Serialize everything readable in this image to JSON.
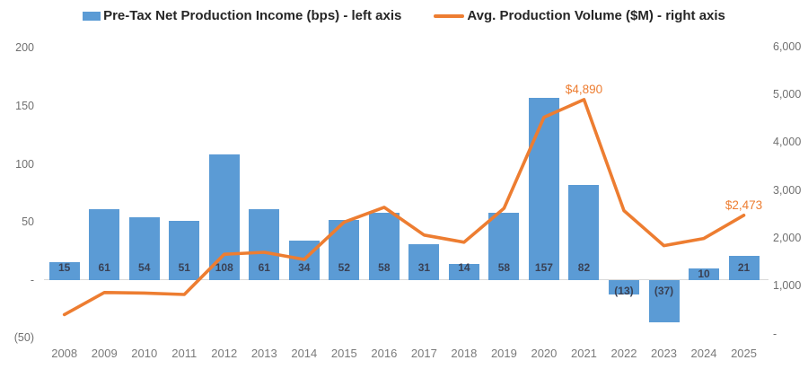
{
  "chart_data": {
    "type": "combo",
    "title": "",
    "grid": false,
    "legend_position": "top",
    "categories": [
      "2008",
      "2009",
      "2010",
      "2011",
      "2012",
      "2013",
      "2014",
      "2015",
      "2016",
      "2017",
      "2018",
      "2019",
      "2020",
      "2021",
      "2022",
      "2023",
      "2024",
      "2025"
    ],
    "series": [
      {
        "name": "Pre-Tax Net Production Income (bps)",
        "legend_label": "Pre-Tax Net Production Income (bps) - left axis",
        "type": "bar",
        "axis": "left",
        "color": "#5B9BD5",
        "values": [
          15,
          61,
          54,
          51,
          108,
          61,
          34,
          52,
          58,
          31,
          14,
          58,
          157,
          82,
          -13,
          -37,
          10,
          21
        ],
        "labels": [
          "15",
          "61",
          "54",
          "51",
          "108",
          "61",
          "34",
          "52",
          "58",
          "31",
          "14",
          "58",
          "157",
          "82",
          "(13)",
          "(37)",
          "10",
          "21"
        ]
      },
      {
        "name": "Avg. Production Volume ($M)",
        "legend_label": "Avg. Production Volume ($M) - right axis",
        "type": "line",
        "axis": "right",
        "color": "#ED7D31",
        "values": [
          400,
          860,
          850,
          820,
          1660,
          1700,
          1550,
          2330,
          2640,
          2060,
          1910,
          2620,
          4520,
          4890,
          2570,
          1840,
          1990,
          2473
        ],
        "annotations": [
          {
            "index": 13,
            "text": "$4,890"
          },
          {
            "index": 17,
            "text": "$2,473"
          }
        ]
      }
    ],
    "left_axis": {
      "min": -50,
      "max": 200,
      "ticks": [
        {
          "value": 200,
          "label": "200"
        },
        {
          "value": 150,
          "label": "150"
        },
        {
          "value": 100,
          "label": "100"
        },
        {
          "value": 50,
          "label": "50"
        },
        {
          "value": 0,
          "label": "-"
        },
        {
          "value": -50,
          "label": "(50)"
        }
      ]
    },
    "right_axis": {
      "min": 0,
      "max": 6000,
      "ticks": [
        {
          "value": 6000,
          "label": "6,000"
        },
        {
          "value": 5000,
          "label": "5,000"
        },
        {
          "value": 4000,
          "label": "4,000"
        },
        {
          "value": 3000,
          "label": "3,000"
        },
        {
          "value": 2000,
          "label": "2,000"
        },
        {
          "value": 1000,
          "label": "1,000"
        },
        {
          "value": 0,
          "label": "-"
        }
      ]
    },
    "colors": {
      "bar": "#5B9BD5",
      "line": "#ED7D31",
      "annotation": "#ED7D31",
      "bar_label": "#3A4154",
      "axis_text": "#707070",
      "x_axis_text": "#7A7A7A",
      "legend_text": "#262626",
      "baseline": "#D9D9D9"
    }
  }
}
